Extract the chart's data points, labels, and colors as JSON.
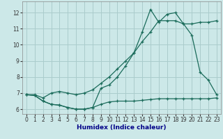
{
  "xlabel": "Humidex (Indice chaleur)",
  "bg_color": "#cce8e8",
  "grid_color": "#aacccc",
  "line_color": "#1a6b5a",
  "xlim": [
    -0.5,
    23.5
  ],
  "ylim": [
    5.7,
    12.7
  ],
  "xticks": [
    0,
    1,
    2,
    3,
    4,
    5,
    6,
    7,
    8,
    9,
    10,
    11,
    12,
    13,
    14,
    15,
    16,
    17,
    18,
    19,
    20,
    21,
    22,
    23
  ],
  "yticks": [
    6,
    7,
    8,
    9,
    10,
    11,
    12
  ],
  "curve1_x": [
    0,
    1,
    2,
    3,
    4,
    5,
    6,
    7,
    8,
    9,
    10,
    11,
    12,
    13,
    14,
    15,
    16,
    17,
    18,
    19,
    20,
    21,
    22,
    23
  ],
  "curve1_y": [
    6.9,
    6.85,
    6.5,
    6.3,
    6.25,
    6.1,
    6.0,
    6.0,
    6.1,
    7.3,
    7.5,
    8.0,
    8.7,
    9.5,
    10.8,
    12.2,
    11.4,
    11.9,
    12.0,
    11.3,
    10.6,
    8.3,
    7.8,
    6.9
  ],
  "curve2_x": [
    0,
    1,
    2,
    3,
    4,
    5,
    6,
    7,
    8,
    9,
    10,
    11,
    12,
    13,
    14,
    15,
    16,
    17,
    18,
    19,
    20,
    21,
    22,
    23
  ],
  "curve2_y": [
    6.9,
    6.9,
    6.7,
    7.0,
    7.1,
    7.0,
    6.9,
    7.0,
    7.2,
    7.6,
    8.0,
    8.5,
    9.0,
    9.5,
    10.2,
    10.8,
    11.5,
    11.5,
    11.5,
    11.3,
    11.3,
    11.4,
    11.4,
    11.5
  ],
  "curve3_x": [
    0,
    1,
    2,
    3,
    4,
    5,
    6,
    7,
    8,
    9,
    10,
    11,
    12,
    13,
    14,
    15,
    16,
    17,
    18,
    19,
    20,
    21,
    22,
    23
  ],
  "curve3_y": [
    6.9,
    6.85,
    6.5,
    6.3,
    6.25,
    6.1,
    6.0,
    6.0,
    6.1,
    6.3,
    6.45,
    6.5,
    6.5,
    6.5,
    6.55,
    6.6,
    6.65,
    6.65,
    6.65,
    6.65,
    6.65,
    6.65,
    6.65,
    6.7
  ]
}
